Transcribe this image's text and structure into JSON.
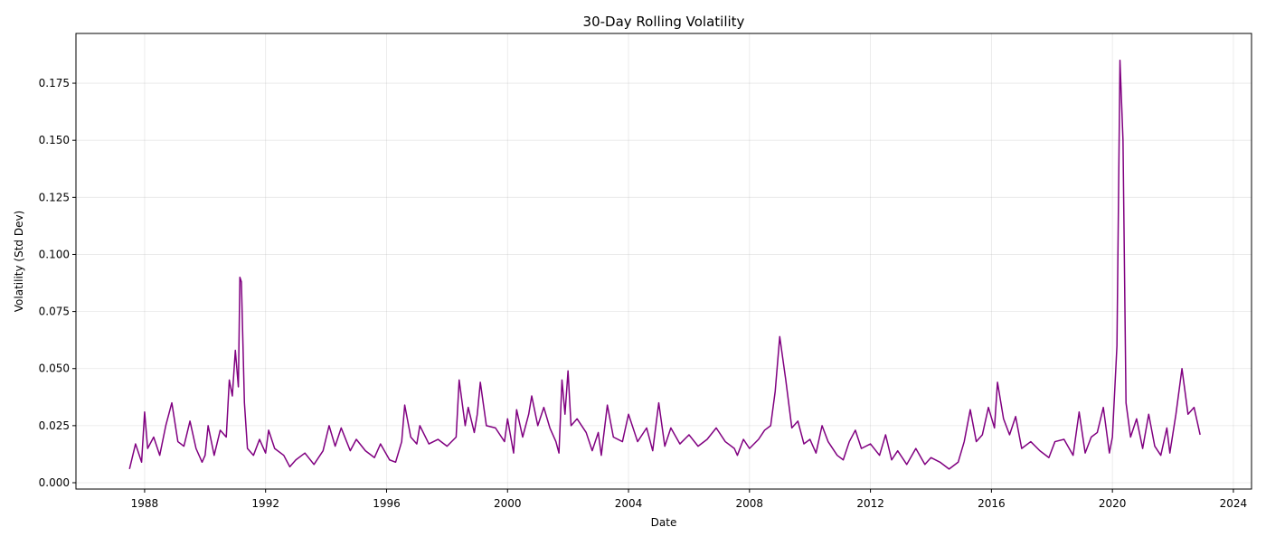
{
  "chart_data": {
    "type": "line",
    "title": "30-Day Rolling Volatility",
    "xlabel": "Date",
    "ylabel": "Volatility (Std Dev)",
    "x": [
      1987.5,
      1987.7,
      1987.9,
      1988.0,
      1988.1,
      1988.3,
      1988.5,
      1988.7,
      1988.9,
      1989.1,
      1989.3,
      1989.5,
      1989.7,
      1989.9,
      1990.0,
      1990.1,
      1990.3,
      1990.5,
      1990.7,
      1990.8,
      1990.9,
      1991.0,
      1991.1,
      1991.15,
      1991.2,
      1991.3,
      1991.4,
      1991.6,
      1991.8,
      1992.0,
      1992.1,
      1992.3,
      1992.6,
      1992.8,
      1993.0,
      1993.3,
      1993.6,
      1993.9,
      1994.1,
      1994.3,
      1994.5,
      1994.8,
      1995.0,
      1995.3,
      1995.6,
      1995.8,
      1996.1,
      1996.3,
      1996.5,
      1996.6,
      1996.8,
      1997.0,
      1997.1,
      1997.4,
      1997.7,
      1998.0,
      1998.3,
      1998.4,
      1998.6,
      1998.7,
      1998.9,
      1999.0,
      1999.1,
      1999.3,
      1999.6,
      1999.9,
      2000.0,
      2000.2,
      2000.3,
      2000.5,
      2000.7,
      2000.8,
      2001.0,
      2001.2,
      2001.4,
      2001.6,
      2001.7,
      2001.8,
      2001.9,
      2002.0,
      2002.1,
      2002.3,
      2002.6,
      2002.8,
      2003.0,
      2003.1,
      2003.3,
      2003.5,
      2003.8,
      2004.0,
      2004.3,
      2004.6,
      2004.8,
      2005.0,
      2005.2,
      2005.4,
      2005.7,
      2006.0,
      2006.3,
      2006.6,
      2006.9,
      2007.2,
      2007.5,
      2007.6,
      2007.8,
      2008.0,
      2008.3,
      2008.5,
      2008.7,
      2008.85,
      2009.0,
      2009.2,
      2009.4,
      2009.6,
      2009.8,
      2010.0,
      2010.2,
      2010.4,
      2010.6,
      2010.9,
      2011.1,
      2011.3,
      2011.5,
      2011.7,
      2012.0,
      2012.3,
      2012.5,
      2012.7,
      2012.9,
      2013.2,
      2013.5,
      2013.8,
      2014.0,
      2014.3,
      2014.6,
      2014.9,
      2015.1,
      2015.3,
      2015.5,
      2015.7,
      2015.9,
      2016.1,
      2016.2,
      2016.4,
      2016.6,
      2016.8,
      2017.0,
      2017.3,
      2017.6,
      2017.9,
      2018.1,
      2018.4,
      2018.7,
      2018.9,
      2019.1,
      2019.3,
      2019.5,
      2019.7,
      2019.9,
      2020.0,
      2020.15,
      2020.25,
      2020.35,
      2020.45,
      2020.6,
      2020.8,
      2021.0,
      2021.2,
      2021.4,
      2021.6,
      2021.8,
      2021.9,
      2022.1,
      2022.3,
      2022.5,
      2022.7,
      2022.9
    ],
    "series": [
      {
        "name": "Volatility",
        "color": "#800080",
        "values": [
          0.006,
          0.017,
          0.009,
          0.031,
          0.015,
          0.02,
          0.012,
          0.025,
          0.035,
          0.018,
          0.016,
          0.027,
          0.015,
          0.009,
          0.012,
          0.025,
          0.012,
          0.023,
          0.02,
          0.045,
          0.038,
          0.058,
          0.042,
          0.09,
          0.088,
          0.035,
          0.015,
          0.012,
          0.019,
          0.013,
          0.023,
          0.015,
          0.012,
          0.007,
          0.01,
          0.013,
          0.008,
          0.014,
          0.025,
          0.016,
          0.024,
          0.014,
          0.019,
          0.014,
          0.011,
          0.017,
          0.01,
          0.009,
          0.018,
          0.034,
          0.02,
          0.017,
          0.025,
          0.017,
          0.019,
          0.016,
          0.02,
          0.045,
          0.025,
          0.033,
          0.022,
          0.03,
          0.044,
          0.025,
          0.024,
          0.018,
          0.028,
          0.013,
          0.032,
          0.02,
          0.03,
          0.038,
          0.025,
          0.033,
          0.024,
          0.018,
          0.013,
          0.045,
          0.03,
          0.049,
          0.025,
          0.028,
          0.022,
          0.014,
          0.022,
          0.012,
          0.034,
          0.02,
          0.018,
          0.03,
          0.018,
          0.024,
          0.014,
          0.035,
          0.016,
          0.024,
          0.017,
          0.021,
          0.016,
          0.019,
          0.024,
          0.018,
          0.015,
          0.012,
          0.019,
          0.015,
          0.019,
          0.023,
          0.025,
          0.04,
          0.064,
          0.045,
          0.024,
          0.027,
          0.017,
          0.019,
          0.013,
          0.025,
          0.018,
          0.012,
          0.01,
          0.018,
          0.023,
          0.015,
          0.017,
          0.012,
          0.021,
          0.01,
          0.014,
          0.008,
          0.015,
          0.008,
          0.011,
          0.009,
          0.006,
          0.009,
          0.018,
          0.032,
          0.018,
          0.021,
          0.033,
          0.024,
          0.044,
          0.028,
          0.021,
          0.029,
          0.015,
          0.018,
          0.014,
          0.011,
          0.018,
          0.019,
          0.012,
          0.031,
          0.013,
          0.02,
          0.022,
          0.033,
          0.013,
          0.02,
          0.06,
          0.185,
          0.15,
          0.035,
          0.02,
          0.028,
          0.015,
          0.03,
          0.016,
          0.012,
          0.024,
          0.013,
          0.03,
          0.05,
          0.03,
          0.033,
          0.021
        ]
      }
    ],
    "xlim": [
      1985.73,
      2024.6
    ],
    "xticks": [
      1988,
      1992,
      1996,
      2000,
      2004,
      2008,
      2012,
      2016,
      2020,
      2024
    ],
    "ylim": [
      -0.00277,
      0.1968
    ],
    "yticks": [
      {
        "value": 0,
        "label": "0.000"
      },
      0.025,
      {
        "value": 0.05,
        "label": "0.050"
      },
      0.075,
      {
        "value": 0.1,
        "label": "0.100"
      },
      0.125,
      {
        "value": 0.15,
        "label": "0.150"
      },
      0.175
    ],
    "grid": true
  }
}
